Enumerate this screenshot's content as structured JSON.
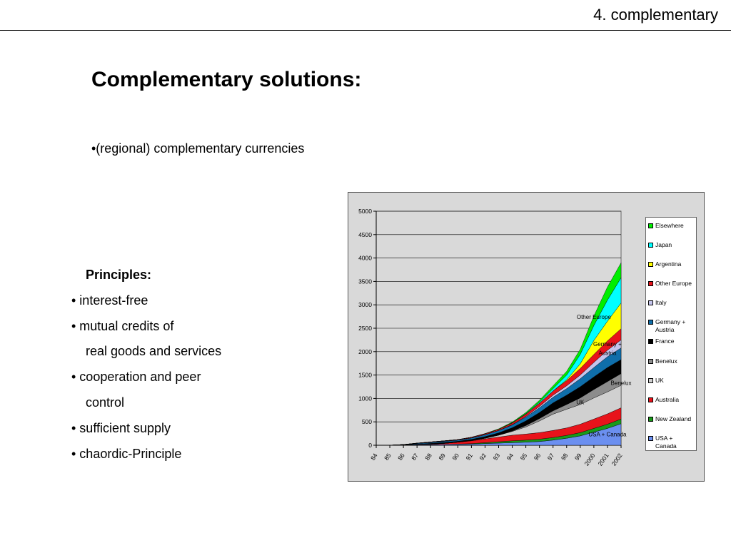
{
  "header": {
    "section_label": "4. complementary"
  },
  "slide": {
    "title": "Complementary solutions:",
    "intro_bullet": "•(regional) complementary currencies",
    "principles": [
      {
        "text": "Principles:",
        "style": "heading"
      },
      {
        "text": "•  interest-free",
        "style": "normal"
      },
      {
        "text": "•  mutual credits of",
        "style": "normal"
      },
      {
        "text": "real goods and services",
        "style": "indent"
      },
      {
        "text": "•  cooperation and peer",
        "style": "normal"
      },
      {
        "text": "control",
        "style": "indent"
      },
      {
        "text": "• sufficient supply",
        "style": "normal"
      },
      {
        "text": "•  chaordic-Principle",
        "style": "normal"
      }
    ]
  },
  "chart_data": {
    "type": "area",
    "stacked": true,
    "title": "",
    "xlabel": "",
    "ylabel": "",
    "x": [
      "84",
      "85",
      "86",
      "87",
      "88",
      "89",
      "90",
      "91",
      "92",
      "93",
      "94",
      "95",
      "96",
      "97",
      "98",
      "99",
      "2000",
      "2001",
      "2002"
    ],
    "ylim": [
      0,
      5000
    ],
    "yticks": [
      0,
      500,
      1000,
      1500,
      2000,
      2500,
      3000,
      3500,
      4000,
      4500,
      5000
    ],
    "grid": true,
    "legend_position": "right",
    "series": [
      {
        "name": "USA + Canada",
        "color": "#6b8ff0",
        "values": [
          0,
          2,
          5,
          10,
          15,
          20,
          20,
          25,
          35,
          45,
          55,
          65,
          80,
          110,
          150,
          200,
          280,
          360,
          460
        ]
      },
      {
        "name": "New Zealand",
        "color": "#1a9a1a",
        "values": [
          0,
          0,
          0,
          0,
          0,
          0,
          5,
          10,
          20,
          30,
          40,
          45,
          50,
          55,
          60,
          70,
          80,
          90,
          100
        ]
      },
      {
        "name": "Australia",
        "color": "#e8131b",
        "values": [
          0,
          0,
          0,
          5,
          10,
          20,
          40,
          60,
          80,
          100,
          120,
          130,
          140,
          150,
          160,
          180,
          200,
          220,
          240
        ]
      },
      {
        "name": "UK",
        "color": "#d0d0d0",
        "values": [
          0,
          0,
          0,
          0,
          0,
          0,
          0,
          5,
          15,
          40,
          80,
          150,
          250,
          350,
          400,
          420,
          450,
          470,
          480
        ]
      },
      {
        "name": "Benelux",
        "color": "#8c8c8c",
        "values": [
          0,
          0,
          0,
          0,
          0,
          0,
          0,
          0,
          0,
          0,
          10,
          30,
          50,
          70,
          100,
          140,
          180,
          220,
          250
        ]
      },
      {
        "name": "France",
        "color": "#000000",
        "values": [
          0,
          0,
          5,
          10,
          15,
          20,
          20,
          25,
          35,
          50,
          70,
          100,
          130,
          170,
          200,
          240,
          270,
          300,
          300
        ]
      },
      {
        "name": "Germany + Austria",
        "color": "#0f6eaa",
        "values": [
          0,
          0,
          5,
          15,
          20,
          25,
          25,
          30,
          40,
          50,
          60,
          80,
          100,
          120,
          140,
          170,
          200,
          230,
          250
        ]
      },
      {
        "name": "Italy",
        "color": "#c4c4ec",
        "values": [
          0,
          0,
          0,
          0,
          0,
          0,
          0,
          0,
          0,
          0,
          5,
          15,
          30,
          45,
          60,
          80,
          110,
          140,
          170
        ]
      },
      {
        "name": "Other Europe",
        "color": "#e8131b",
        "values": [
          0,
          0,
          0,
          5,
          10,
          10,
          10,
          15,
          20,
          25,
          35,
          50,
          70,
          90,
          110,
          140,
          170,
          200,
          240
        ]
      },
      {
        "name": "Argentina",
        "color": "#ffff00",
        "values": [
          0,
          0,
          0,
          0,
          0,
          0,
          0,
          0,
          0,
          0,
          0,
          0,
          0,
          0,
          20,
          100,
          300,
          420,
          550
        ]
      },
      {
        "name": "Japan",
        "color": "#00ffff",
        "values": [
          0,
          0,
          0,
          0,
          0,
          0,
          0,
          0,
          0,
          0,
          5,
          10,
          20,
          50,
          100,
          200,
          320,
          450,
          540
        ]
      },
      {
        "name": "Elsewhere",
        "color": "#00ee00",
        "values": [
          0,
          0,
          0,
          0,
          0,
          0,
          0,
          0,
          5,
          10,
          15,
          25,
          40,
          60,
          80,
          110,
          200,
          280,
          320
        ]
      }
    ],
    "annotations": [
      {
        "text": "Other Europe",
        "x": "2000",
        "y": 2700
      },
      {
        "text": "Germany +",
        "x": "2001",
        "y": 2120
      },
      {
        "text": "Austria",
        "x": "2001",
        "y": 1930
      },
      {
        "text": "Benelux",
        "x": "2002",
        "y": 1290
      },
      {
        "text": "UK",
        "x": "99",
        "y": 880
      },
      {
        "text": "USA + Canada",
        "x": "2001",
        "y": 190
      }
    ],
    "legend_order": [
      "Elsewhere",
      "Japan",
      "Argentina",
      "Other Europe",
      "Italy",
      "Germany + Austria",
      "France",
      "Benelux",
      "UK",
      "Australia",
      "New Zealand",
      "USA + Canada"
    ]
  }
}
